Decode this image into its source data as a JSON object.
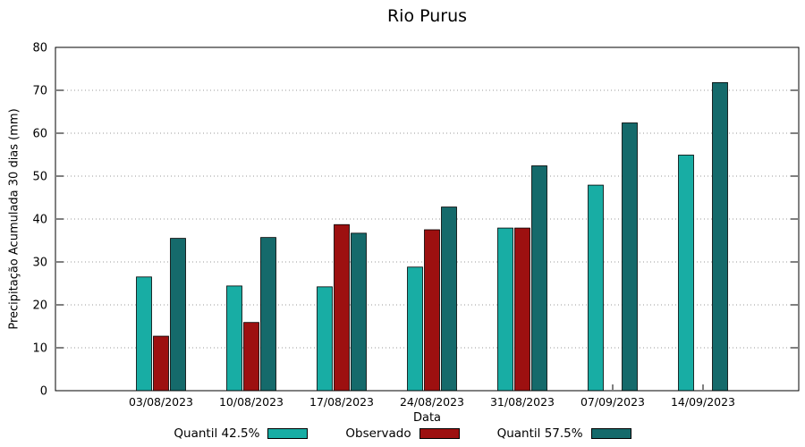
{
  "chart_data": {
    "type": "bar",
    "title": "Rio Purus",
    "xlabel": "Data",
    "ylabel": "Precipitação Acumulada 30 dias (mm)",
    "ylim": [
      0,
      80
    ],
    "ytick_step": 10,
    "grid": true,
    "grid_style": "dotted",
    "legend_position": "bottom",
    "categories": [
      "03/08/2023",
      "10/08/2023",
      "17/08/2023",
      "24/08/2023",
      "31/08/2023",
      "07/09/2023",
      "14/09/2023"
    ],
    "series": [
      {
        "name": "Quantil 42.5%",
        "color": "#18ADA4",
        "values": [
          26.5,
          24.4,
          24.2,
          28.8,
          37.9,
          47.9,
          54.9
        ]
      },
      {
        "name": "Observado",
        "color": "#9D1010",
        "values": [
          12.7,
          15.9,
          38.7,
          37.5,
          37.9,
          null,
          null
        ]
      },
      {
        "name": "Quantil 57.5%",
        "color": "#156A6B",
        "values": [
          35.5,
          35.7,
          36.7,
          42.8,
          52.4,
          62.4,
          71.8
        ]
      }
    ]
  }
}
